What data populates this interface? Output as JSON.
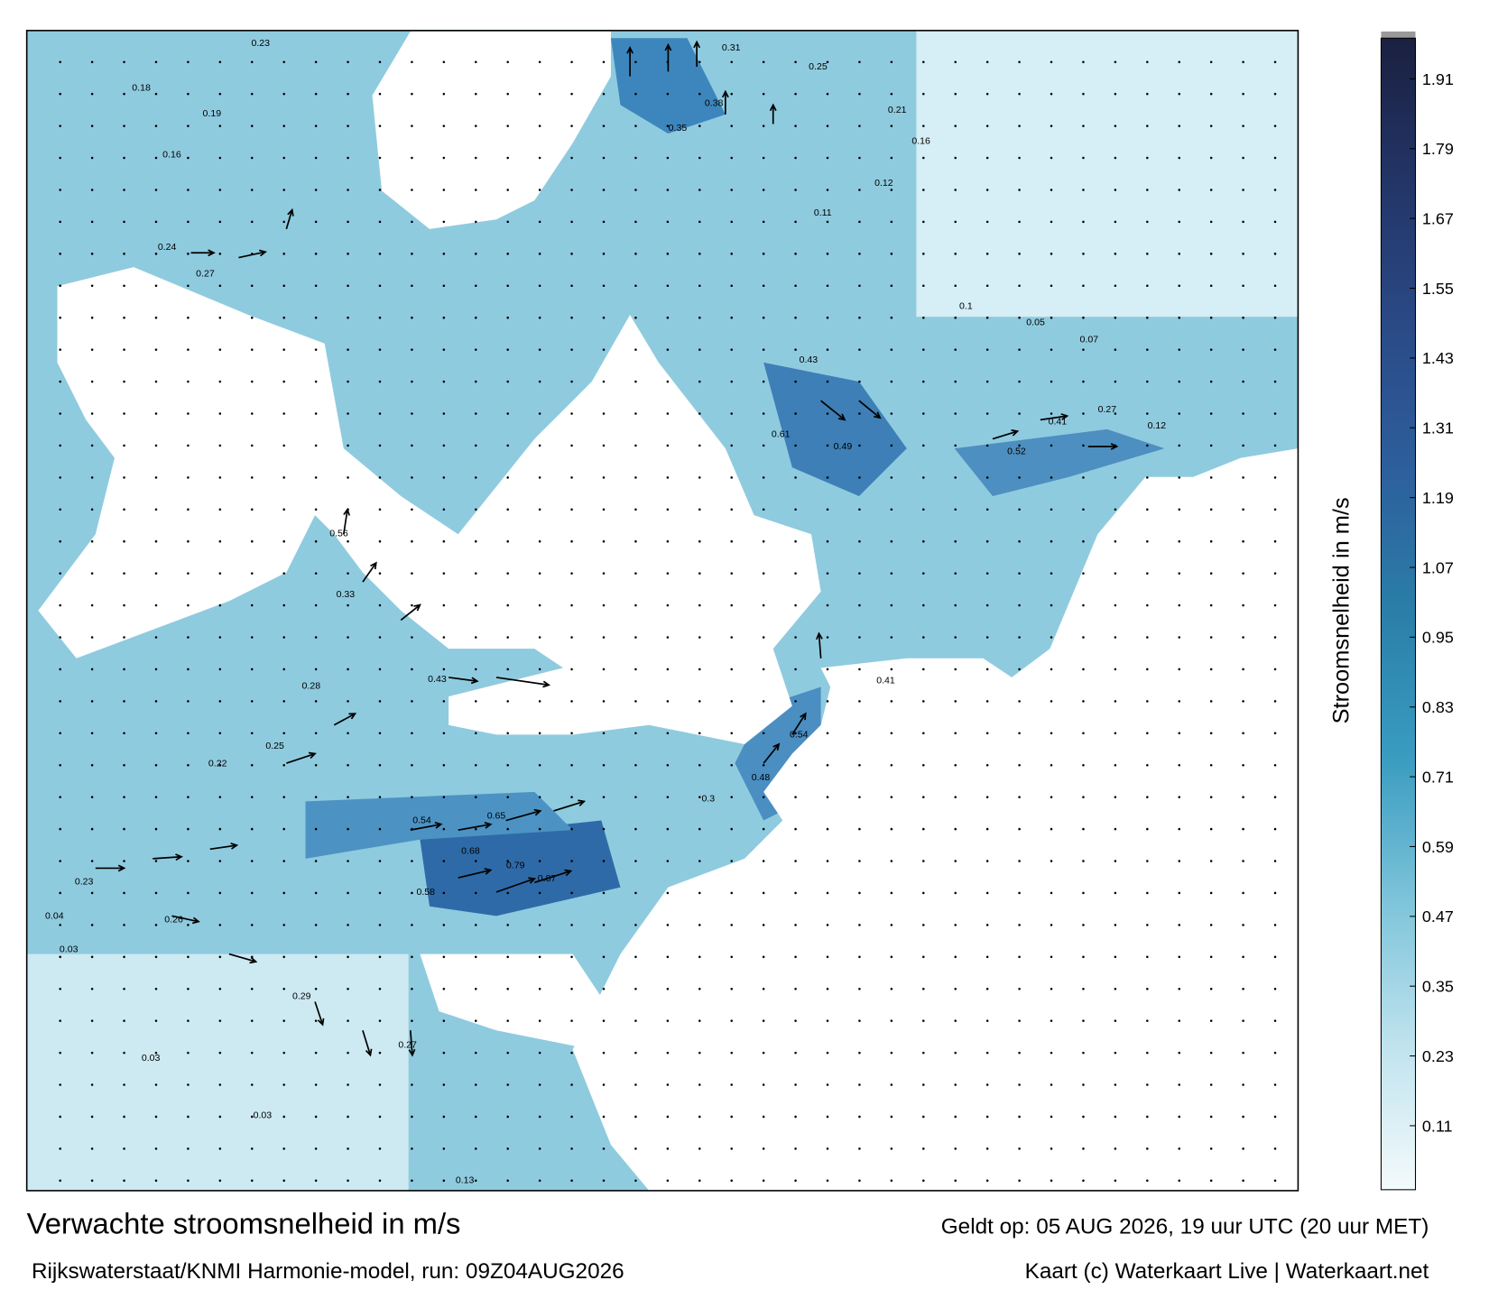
{
  "title": "Verwachte stroomsnelheid in m/s",
  "subtitle": "Rijkswaterstaat/KNMI Harmonie-model, run: 09Z04AUG2026",
  "valid_time": "Geldt op: 05 AUG 2026, 19 uur UTC (20 uur MET)",
  "credit": "Kaart (c) Waterkaart Live | Waterkaart.net",
  "colorbar": {
    "label": "Stroomsnelheid in m/s",
    "clim": [
      0,
      1.98
    ],
    "ticks": [
      0.11,
      0.23,
      0.35,
      0.47,
      0.59,
      0.71,
      0.83,
      0.95,
      1.07,
      1.19,
      1.31,
      1.43,
      1.55,
      1.67,
      1.79,
      1.91
    ],
    "colors": [
      "#f4fafc",
      "#bfe3ee",
      "#7ec4da",
      "#3a9cc0",
      "#2a7fa8",
      "#2d5f9c",
      "#2a4a86",
      "#233567",
      "#1a2040"
    ]
  },
  "map_labels": [
    0.23,
    0.18,
    0.19,
    0.16,
    0.24,
    0.27,
    0.31,
    0.25,
    0.38,
    0.35,
    0.21,
    0.16,
    0.12,
    0.11,
    0.43,
    0.49,
    0.61,
    0.52,
    0.41,
    0.27,
    0.56,
    0.33,
    0.43,
    0.28,
    0.25,
    0.22,
    0.65,
    0.68,
    0.79,
    0.87,
    0.58,
    0.54,
    0.23,
    0.26,
    0.04,
    0.03,
    0.29,
    0.27,
    0.03,
    0.03,
    0.13,
    0.54,
    0.48,
    0.3,
    0.41,
    0.12,
    0.05,
    0.07,
    0.1
  ]
}
